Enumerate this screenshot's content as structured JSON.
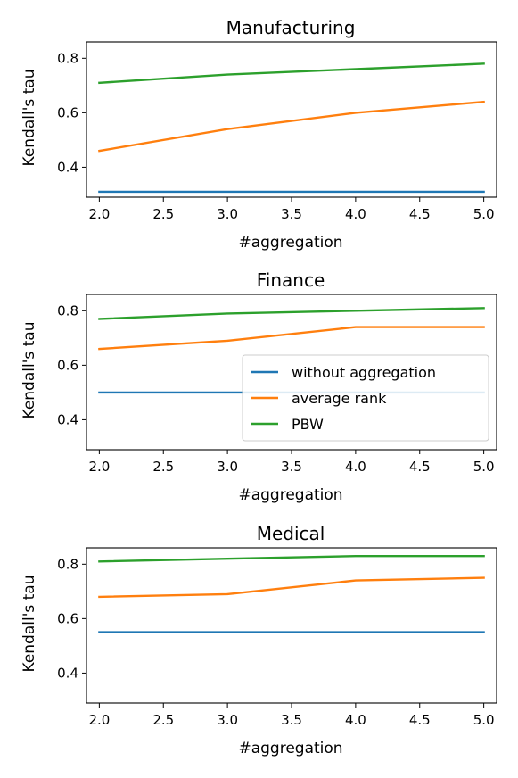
{
  "chart_data": [
    {
      "type": "line",
      "title": "Manufacturing",
      "xlabel": "#aggregation",
      "ylabel": "Kendall's tau",
      "x": [
        2,
        3,
        4,
        5
      ],
      "xlim": [
        1.9,
        5.1
      ],
      "ylim": [
        0.29,
        0.86
      ],
      "xticks": [
        "2.0",
        "2.5",
        "3.0",
        "3.5",
        "4.0",
        "4.5",
        "5.0"
      ],
      "yticks": [
        "0.4",
        "0.6",
        "0.8"
      ],
      "series": [
        {
          "name": "without aggregation",
          "color": "#1f77b4",
          "values": [
            0.31,
            0.31,
            0.31,
            0.31
          ]
        },
        {
          "name": "average rank",
          "color": "#ff7f0e",
          "values": [
            0.46,
            0.54,
            0.6,
            0.64
          ]
        },
        {
          "name": "PBW",
          "color": "#2ca02c",
          "values": [
            0.71,
            0.74,
            0.76,
            0.78
          ]
        }
      ],
      "legend": false
    },
    {
      "type": "line",
      "title": "Finance",
      "xlabel": "#aggregation",
      "ylabel": "Kendall's tau",
      "x": [
        2,
        3,
        4,
        5
      ],
      "xlim": [
        1.9,
        5.1
      ],
      "ylim": [
        0.29,
        0.86
      ],
      "xticks": [
        "2.0",
        "2.5",
        "3.0",
        "3.5",
        "4.0",
        "4.5",
        "5.0"
      ],
      "yticks": [
        "0.4",
        "0.6",
        "0.8"
      ],
      "series": [
        {
          "name": "without aggregation",
          "color": "#1f77b4",
          "values": [
            0.5,
            0.5,
            0.5,
            0.5
          ]
        },
        {
          "name": "average rank",
          "color": "#ff7f0e",
          "values": [
            0.66,
            0.69,
            0.74,
            0.74
          ]
        },
        {
          "name": "PBW",
          "color": "#2ca02c",
          "values": [
            0.77,
            0.79,
            0.8,
            0.81
          ]
        }
      ],
      "legend": true,
      "legend_position": "lower-right",
      "legend_entries": [
        "without aggregation",
        "average rank",
        "PBW"
      ]
    },
    {
      "type": "line",
      "title": "Medical",
      "xlabel": "#aggregation",
      "ylabel": "Kendall's tau",
      "x": [
        2,
        3,
        4,
        5
      ],
      "xlim": [
        1.9,
        5.1
      ],
      "ylim": [
        0.29,
        0.86
      ],
      "xticks": [
        "2.0",
        "2.5",
        "3.0",
        "3.5",
        "4.0",
        "4.5",
        "5.0"
      ],
      "yticks": [
        "0.4",
        "0.6",
        "0.8"
      ],
      "series": [
        {
          "name": "without aggregation",
          "color": "#1f77b4",
          "values": [
            0.55,
            0.55,
            0.55,
            0.55
          ]
        },
        {
          "name": "average rank",
          "color": "#ff7f0e",
          "values": [
            0.68,
            0.69,
            0.74,
            0.75
          ]
        },
        {
          "name": "PBW",
          "color": "#2ca02c",
          "values": [
            0.81,
            0.82,
            0.83,
            0.83
          ]
        }
      ],
      "legend": false
    }
  ]
}
